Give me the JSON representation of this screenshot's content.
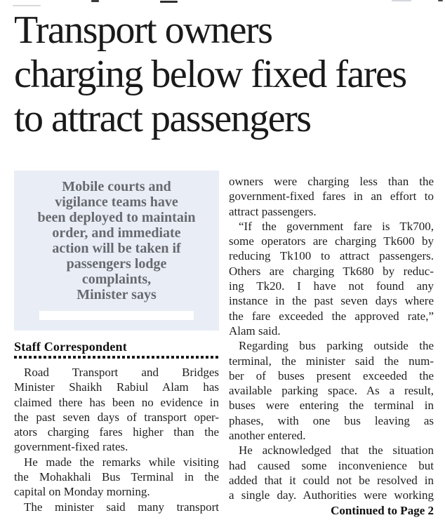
{
  "colors": {
    "pull_quote_bg": "#e8edf6",
    "pull_quote_text": "#67696e",
    "headline_text": "#1a1a1a",
    "body_text": "#1f1f1f"
  },
  "article": {
    "headline": "Transport owners charging below fixed fares to attract passengers",
    "headline_lines": [
      "Transport owners",
      "charging below fixed fares",
      "to attract passengers"
    ],
    "pull_quote": {
      "text": "Mobile courts and vigilance teams have been deployed to maintain order, and immediate action will be taken if passengers lodge complaints, Minister says",
      "lines": [
        "Mobile courts and",
        "vigilance teams have",
        "been deployed to maintain",
        "order, and immediate",
        "action will be taken if",
        "passengers lodge",
        "complaints,",
        "Minister says"
      ]
    },
    "byline": "Staff Correspondent",
    "left_column_paragraphs": [
      {
        "indent": true,
        "justify_last": false,
        "lines": [
          "Road Transport and Bridges",
          "Minister Shaikh Rabiul Alam has",
          "claimed there has been no evidence in",
          "the past seven days of transport oper-",
          "ators charging fares higher than the",
          "government-fixed rates."
        ]
      },
      {
        "indent": true,
        "justify_last": false,
        "lines": [
          "He made the remarks while visiting",
          "the Mohakhali Bus Terminal in the",
          "capital on Monday morning."
        ]
      },
      {
        "indent": true,
        "justify_last": true,
        "lines": [
          "The minister said many transport"
        ]
      }
    ],
    "right_column_paragraphs": [
      {
        "indent": false,
        "justify_last": false,
        "lines": [
          "owners were charging less than the",
          "government-fixed fares in an effort to",
          "attract passengers."
        ]
      },
      {
        "indent": true,
        "justify_last": false,
        "lines": [
          "“If the government fare is Tk700,",
          "some operators are charging Tk600 by",
          "reducing Tk100 to attract passengers.",
          "Others are charging Tk680 by reduc-",
          "ing Tk20. I have not found any",
          "instance in the past seven days where",
          "the fare exceeded the approved rate,”",
          "Alam said."
        ]
      },
      {
        "indent": true,
        "justify_last": false,
        "lines": [
          "Regarding bus parking outside the",
          "terminal, the minister said the num-",
          "ber of buses present exceeded the",
          "available parking space. As a result,",
          "buses were entering the terminal in",
          "phases, with one bus leaving as",
          "another entered."
        ]
      },
      {
        "indent": true,
        "justify_last": true,
        "lines": [
          "He acknowledged that the situation",
          "had caused some inconvenience but",
          "added that it could not be resolved in",
          "a single day. Authorities were working"
        ]
      }
    ],
    "continued": "Continued to Page 2"
  }
}
